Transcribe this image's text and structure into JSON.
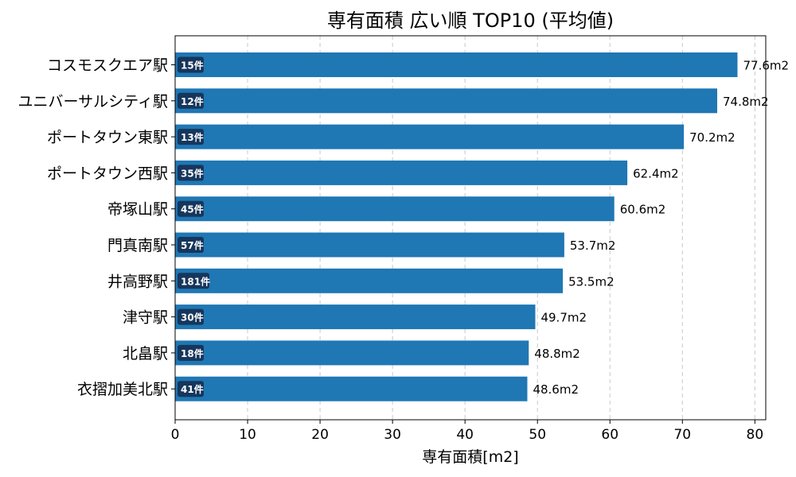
{
  "chart_data": {
    "type": "bar",
    "orientation": "horizontal",
    "title": "専有面積 広い順 TOP10 (平均値)",
    "xlabel": "専有面積[m2]",
    "ylabel": "",
    "xlim": [
      0,
      81.5
    ],
    "xticks": [
      0,
      10,
      20,
      30,
      40,
      50,
      60,
      70,
      80
    ],
    "grid": "x-dashed",
    "categories": [
      "コスモスクエア駅",
      "ユニバーサルシティ駅",
      "ポートタウン東駅",
      "ポートタウン西駅",
      "帝塚山駅",
      "門真南駅",
      "井高野駅",
      "津守駅",
      "北畠駅",
      "衣摺加美北駅"
    ],
    "values": [
      77.6,
      74.8,
      70.2,
      62.4,
      60.6,
      53.7,
      53.5,
      49.7,
      48.8,
      48.6
    ],
    "value_labels": [
      "77.6m2",
      "74.8m2",
      "70.2m2",
      "62.4m2",
      "60.6m2",
      "53.7m2",
      "53.5m2",
      "49.7m2",
      "48.8m2",
      "48.6m2"
    ],
    "counts": [
      "15件",
      "12件",
      "13件",
      "35件",
      "45件",
      "57件",
      "181件",
      "30件",
      "18件",
      "41件"
    ],
    "bar_color": "#1f77b4",
    "badge_color": "#16365c"
  }
}
